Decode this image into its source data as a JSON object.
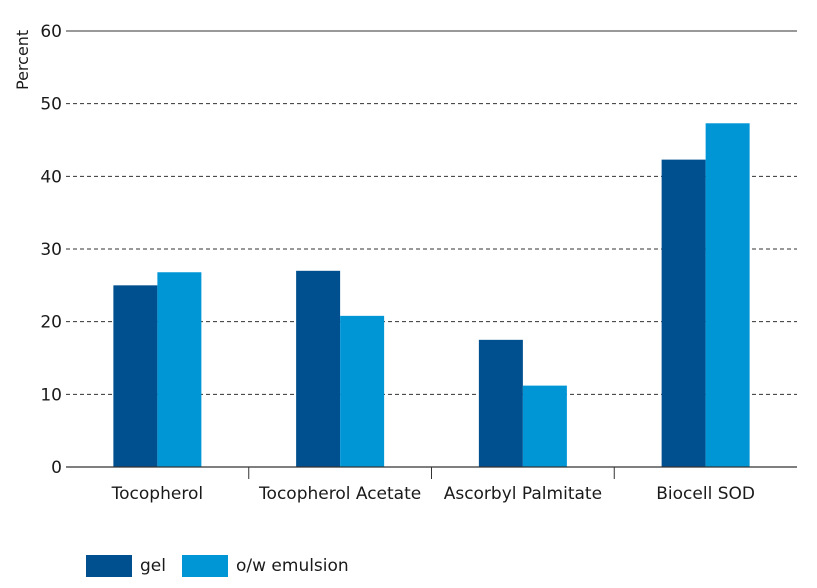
{
  "chart_data": {
    "type": "bar",
    "title": "",
    "xlabel": "",
    "ylabel": "Percent",
    "ylim": [
      0,
      60
    ],
    "yticks": [
      0,
      10,
      20,
      30,
      40,
      50,
      60
    ],
    "grid": "horizontal dashed",
    "legend_position": "bottom-left",
    "categories": [
      "Tocopherol",
      "Tocopherol Acetate",
      "Ascorbyl Palmitate",
      "Biocell SOD"
    ],
    "series": [
      {
        "name": "gel",
        "color": "#004f8f",
        "values": [
          25,
          27,
          17.5,
          42.3
        ]
      },
      {
        "name": "o/w emulsion",
        "color": "#0096d6",
        "values": [
          26.8,
          20.8,
          11.2,
          47.3
        ]
      }
    ]
  }
}
